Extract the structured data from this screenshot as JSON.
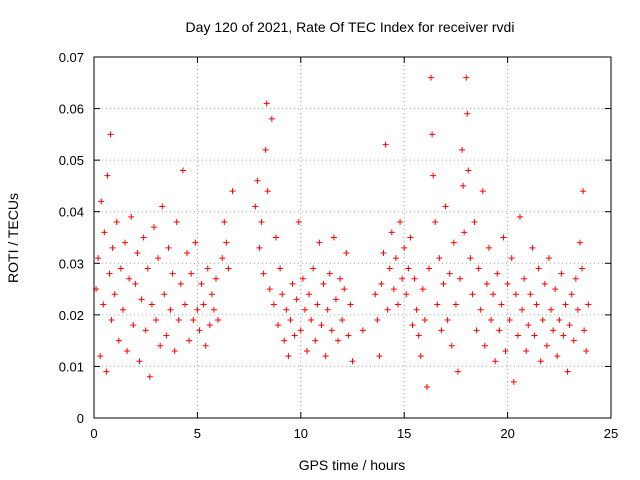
{
  "chart_data": {
    "type": "scatter",
    "title": "Day 120 of 2021, Rate Of TEC Index for receiver rvdi",
    "xlabel": "GPS time / hours",
    "ylabel": "ROTI / TECUs",
    "xlim": [
      0,
      25
    ],
    "ylim": [
      0,
      0.07
    ],
    "xticks": [
      "0",
      "5",
      "10",
      "15",
      "20",
      "25"
    ],
    "yticks": [
      "0",
      "0.01",
      "0.02",
      "0.03",
      "0.04",
      "0.05",
      "0.06",
      "0.07"
    ],
    "grid": true,
    "marker": "plus",
    "color": "#ff0000",
    "series": [
      {
        "points": [
          [
            0.1,
            0.025
          ],
          [
            0.2,
            0.031
          ],
          [
            0.3,
            0.012
          ],
          [
            0.35,
            0.042
          ],
          [
            0.45,
            0.022
          ],
          [
            0.5,
            0.036
          ],
          [
            0.6,
            0.009
          ],
          [
            0.65,
            0.047
          ],
          [
            0.75,
            0.028
          ],
          [
            0.8,
            0.055
          ],
          [
            0.85,
            0.019
          ],
          [
            0.9,
            0.033
          ],
          [
            1.0,
            0.024
          ],
          [
            1.1,
            0.038
          ],
          [
            1.2,
            0.015
          ],
          [
            1.3,
            0.029
          ],
          [
            1.4,
            0.021
          ],
          [
            1.5,
            0.034
          ],
          [
            1.6,
            0.013
          ],
          [
            1.7,
            0.027
          ],
          [
            1.8,
            0.039
          ],
          [
            1.9,
            0.018
          ],
          [
            2.0,
            0.026
          ],
          [
            2.1,
            0.032
          ],
          [
            2.2,
            0.011
          ],
          [
            2.3,
            0.023
          ],
          [
            2.4,
            0.035
          ],
          [
            2.5,
            0.017
          ],
          [
            2.6,
            0.029
          ],
          [
            2.7,
            0.008
          ],
          [
            2.8,
            0.022
          ],
          [
            2.9,
            0.037
          ],
          [
            3.0,
            0.019
          ],
          [
            3.1,
            0.031
          ],
          [
            3.2,
            0.014
          ],
          [
            3.3,
            0.041
          ],
          [
            3.4,
            0.024
          ],
          [
            3.5,
            0.016
          ],
          [
            3.6,
            0.033
          ],
          [
            3.7,
            0.021
          ],
          [
            3.8,
            0.028
          ],
          [
            3.9,
            0.013
          ],
          [
            4.0,
            0.038
          ],
          [
            4.1,
            0.019
          ],
          [
            4.2,
            0.026
          ],
          [
            4.3,
            0.048
          ],
          [
            4.4,
            0.022
          ],
          [
            4.5,
            0.032
          ],
          [
            4.6,
            0.015
          ],
          [
            4.7,
            0.028
          ],
          [
            4.8,
            0.019
          ],
          [
            4.9,
            0.034
          ],
          [
            5.0,
            0.021
          ],
          [
            5.1,
            0.017
          ],
          [
            5.2,
            0.026
          ],
          [
            5.3,
            0.022
          ],
          [
            5.4,
            0.014
          ],
          [
            5.5,
            0.029
          ],
          [
            5.6,
            0.018
          ],
          [
            5.7,
            0.024
          ],
          [
            5.8,
            0.021
          ],
          [
            5.9,
            0.027
          ],
          [
            6.0,
            0.019
          ],
          [
            6.2,
            0.031
          ],
          [
            6.3,
            0.038
          ],
          [
            6.4,
            0.034
          ],
          [
            6.5,
            0.029
          ],
          [
            6.7,
            0.044
          ],
          [
            7.8,
            0.041
          ],
          [
            7.9,
            0.046
          ],
          [
            8.0,
            0.033
          ],
          [
            8.1,
            0.038
          ],
          [
            8.2,
            0.028
          ],
          [
            8.3,
            0.052
          ],
          [
            8.35,
            0.061
          ],
          [
            8.4,
            0.044
          ],
          [
            8.5,
            0.025
          ],
          [
            8.6,
            0.058
          ],
          [
            8.7,
            0.022
          ],
          [
            8.8,
            0.035
          ],
          [
            8.9,
            0.018
          ],
          [
            9.0,
            0.029
          ],
          [
            9.1,
            0.024
          ],
          [
            9.2,
            0.015
          ],
          [
            9.3,
            0.021
          ],
          [
            9.4,
            0.012
          ],
          [
            9.5,
            0.019
          ],
          [
            9.6,
            0.026
          ],
          [
            9.7,
            0.016
          ],
          [
            9.8,
            0.023
          ],
          [
            9.9,
            0.038
          ],
          [
            10.0,
            0.017
          ],
          [
            10.1,
            0.027
          ],
          [
            10.2,
            0.021
          ],
          [
            10.3,
            0.013
          ],
          [
            10.4,
            0.024
          ],
          [
            10.5,
            0.019
          ],
          [
            10.6,
            0.029
          ],
          [
            10.7,
            0.015
          ],
          [
            10.8,
            0.022
          ],
          [
            10.9,
            0.034
          ],
          [
            11.0,
            0.018
          ],
          [
            11.1,
            0.026
          ],
          [
            11.2,
            0.012
          ],
          [
            11.3,
            0.021
          ],
          [
            11.4,
            0.028
          ],
          [
            11.5,
            0.017
          ],
          [
            11.6,
            0.035
          ],
          [
            11.7,
            0.023
          ],
          [
            11.8,
            0.015
          ],
          [
            11.9,
            0.027
          ],
          [
            12.0,
            0.019
          ],
          [
            12.1,
            0.025
          ],
          [
            12.2,
            0.032
          ],
          [
            12.3,
            0.016
          ],
          [
            12.4,
            0.022
          ],
          [
            12.5,
            0.011
          ],
          [
            13.0,
            0.017
          ],
          [
            13.6,
            0.024
          ],
          [
            13.7,
            0.019
          ],
          [
            13.8,
            0.012
          ],
          [
            13.9,
            0.026
          ],
          [
            14.0,
            0.032
          ],
          [
            14.1,
            0.053
          ],
          [
            14.2,
            0.021
          ],
          [
            14.3,
            0.029
          ],
          [
            14.4,
            0.036
          ],
          [
            14.5,
            0.025
          ],
          [
            14.6,
            0.031
          ],
          [
            14.7,
            0.022
          ],
          [
            14.8,
            0.038
          ],
          [
            14.9,
            0.027
          ],
          [
            15.0,
            0.033
          ],
          [
            15.1,
            0.024
          ],
          [
            15.2,
            0.029
          ],
          [
            15.3,
            0.035
          ],
          [
            15.4,
            0.018
          ],
          [
            15.5,
            0.027
          ],
          [
            15.6,
            0.021
          ],
          [
            15.7,
            0.016
          ],
          [
            15.8,
            0.012
          ],
          [
            15.9,
            0.025
          ],
          [
            16.0,
            0.019
          ],
          [
            16.1,
            0.006
          ],
          [
            16.2,
            0.029
          ],
          [
            16.3,
            0.066
          ],
          [
            16.35,
            0.055
          ],
          [
            16.4,
            0.047
          ],
          [
            16.5,
            0.038
          ],
          [
            16.6,
            0.022
          ],
          [
            16.7,
            0.031
          ],
          [
            16.8,
            0.017
          ],
          [
            16.9,
            0.026
          ],
          [
            17.0,
            0.041
          ],
          [
            17.1,
            0.019
          ],
          [
            17.2,
            0.028
          ],
          [
            17.3,
            0.014
          ],
          [
            17.4,
            0.034
          ],
          [
            17.5,
            0.022
          ],
          [
            17.6,
            0.009
          ],
          [
            17.7,
            0.027
          ],
          [
            17.8,
            0.052
          ],
          [
            17.85,
            0.045
          ],
          [
            17.9,
            0.036
          ],
          [
            18.0,
            0.066
          ],
          [
            18.05,
            0.059
          ],
          [
            18.1,
            0.048
          ],
          [
            18.2,
            0.031
          ],
          [
            18.3,
            0.024
          ],
          [
            18.4,
            0.038
          ],
          [
            18.5,
            0.017
          ],
          [
            18.6,
            0.029
          ],
          [
            18.7,
            0.021
          ],
          [
            18.8,
            0.044
          ],
          [
            18.9,
            0.014
          ],
          [
            19.0,
            0.026
          ],
          [
            19.1,
            0.033
          ],
          [
            19.2,
            0.019
          ],
          [
            19.3,
            0.024
          ],
          [
            19.4,
            0.011
          ],
          [
            19.5,
            0.028
          ],
          [
            19.6,
            0.017
          ],
          [
            19.7,
            0.022
          ],
          [
            19.8,
            0.035
          ],
          [
            19.9,
            0.013
          ],
          [
            20.0,
            0.026
          ],
          [
            20.1,
            0.019
          ],
          [
            20.2,
            0.031
          ],
          [
            20.3,
            0.007
          ],
          [
            20.4,
            0.024
          ],
          [
            20.5,
            0.016
          ],
          [
            20.6,
            0.039
          ],
          [
            20.7,
            0.021
          ],
          [
            20.8,
            0.027
          ],
          [
            20.9,
            0.013
          ],
          [
            21.0,
            0.018
          ],
          [
            21.1,
            0.024
          ],
          [
            21.2,
            0.033
          ],
          [
            21.3,
            0.016
          ],
          [
            21.4,
            0.022
          ],
          [
            21.5,
            0.029
          ],
          [
            21.6,
            0.011
          ],
          [
            21.7,
            0.019
          ],
          [
            21.8,
            0.026
          ],
          [
            21.9,
            0.014
          ],
          [
            22.0,
            0.031
          ],
          [
            22.1,
            0.021
          ],
          [
            22.2,
            0.017
          ],
          [
            22.3,
            0.025
          ],
          [
            22.4,
            0.012
          ],
          [
            22.5,
            0.019
          ],
          [
            22.6,
            0.028
          ],
          [
            22.7,
            0.016
          ],
          [
            22.8,
            0.022
          ],
          [
            22.9,
            0.009
          ],
          [
            23.0,
            0.018
          ],
          [
            23.1,
            0.024
          ],
          [
            23.2,
            0.015
          ],
          [
            23.3,
            0.027
          ],
          [
            23.4,
            0.021
          ],
          [
            23.5,
            0.034
          ],
          [
            23.6,
            0.029
          ],
          [
            23.65,
            0.044
          ],
          [
            23.7,
            0.017
          ],
          [
            23.8,
            0.013
          ],
          [
            23.9,
            0.022
          ]
        ]
      }
    ]
  }
}
